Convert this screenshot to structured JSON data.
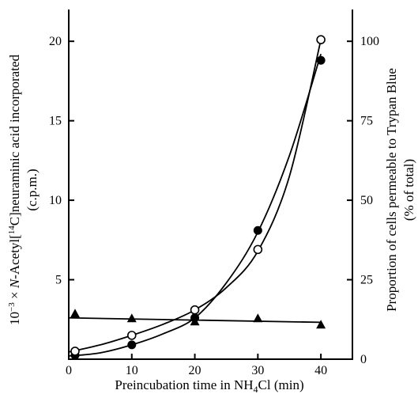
{
  "chart_data": {
    "type": "line",
    "xlabel_prefix": "Preincubation time in NH",
    "xlabel_sub": "4",
    "xlabel_suffix": "Cl (min)",
    "ylabel_left_line1_prefix": "10",
    "ylabel_left_line1_exp": "−3",
    "ylabel_left_line1_mid": " × ",
    "ylabel_left_line1_italic": "N",
    "ylabel_left_line1_mid2": "-Acetyl[",
    "ylabel_left_line1_iso": "14",
    "ylabel_left_line1_suffix": "C]neuraminic acid incorporated",
    "ylabel_left_line2": "(c.p.m.)",
    "ylabel_right_line1": "Proportion of cells permeable to Trypan Blue",
    "ylabel_right_line2": "(% of total)",
    "xlim": [
      0,
      45
    ],
    "ylim_left": [
      0,
      22
    ],
    "ylim_right": [
      0,
      110
    ],
    "x_ticks": [
      0,
      10,
      20,
      30,
      40
    ],
    "x_tick_labels": [
      "0",
      "10",
      "20",
      "30",
      "40"
    ],
    "y_left_ticks": [
      5,
      10,
      15,
      20
    ],
    "y_left_tick_labels": [
      "5",
      "10",
      "15",
      "20"
    ],
    "y_right_ticks": [
      0,
      25,
      50,
      75,
      100
    ],
    "y_right_tick_labels": [
      "0",
      "25",
      "50",
      "75",
      "100"
    ],
    "series": [
      {
        "marker": "filled-circle",
        "axis": "left",
        "x": [
          1,
          10,
          20,
          30,
          40
        ],
        "y": [
          0.25,
          0.9,
          2.6,
          8.1,
          18.8
        ],
        "curve_x": [
          0,
          5,
          10,
          15,
          20,
          25,
          30,
          35,
          40
        ],
        "curve_y": [
          0.2,
          0.4,
          0.9,
          1.6,
          2.6,
          4.8,
          8.0,
          12.8,
          19.2
        ]
      },
      {
        "marker": "open-circle",
        "axis": "left",
        "x": [
          1,
          10,
          20,
          30,
          40
        ],
        "y": [
          0.5,
          1.5,
          3.1,
          6.9,
          20.1
        ],
        "curve_x": [
          0,
          5,
          10,
          15,
          20,
          25,
          30,
          35,
          40
        ],
        "curve_y": [
          0.45,
          0.9,
          1.5,
          2.2,
          3.1,
          4.5,
          6.8,
          11.5,
          20.1
        ]
      },
      {
        "marker": "filled-triangle",
        "axis": "right",
        "x": [
          1,
          10,
          20,
          30,
          40
        ],
        "y": [
          14.5,
          13.0,
          12.0,
          13.0,
          11.0
        ],
        "curve_x": [
          0,
          40
        ],
        "curve_y": [
          13.0,
          11.6
        ]
      }
    ]
  }
}
